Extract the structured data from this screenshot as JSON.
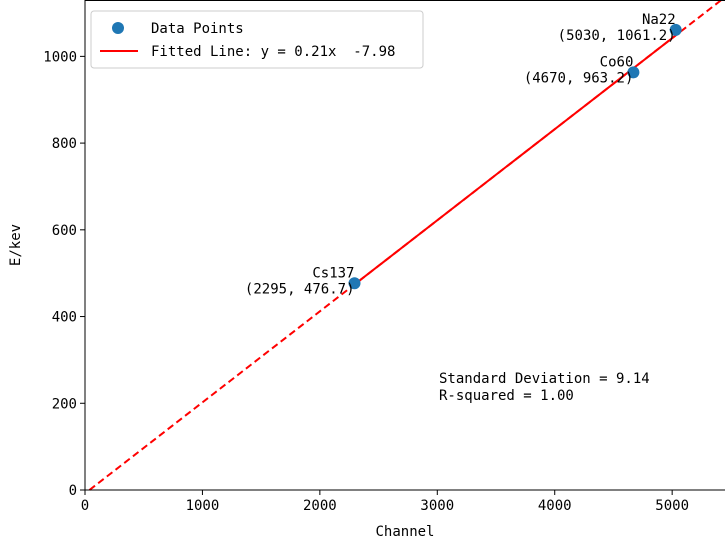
{
  "chart_data": {
    "type": "scatter",
    "xlabel": "Channel",
    "ylabel": "E/kev",
    "xlim": [
      0,
      5450
    ],
    "ylim": [
      0,
      1130
    ],
    "x_ticks": [
      0,
      1000,
      2000,
      3000,
      4000,
      5000
    ],
    "y_ticks": [
      0,
      200,
      400,
      600,
      800,
      1000
    ],
    "grid": false,
    "legend_position": "top-left",
    "series": [
      {
        "name": "Data Points",
        "type": "scatter",
        "color": "#1f77b4",
        "points": [
          {
            "x": 2295,
            "y": 476.7,
            "label": "Cs137",
            "coord_label": "(2295, 476.7)"
          },
          {
            "x": 4670,
            "y": 963.2,
            "label": "Co60",
            "coord_label": "(4670, 963.2)"
          },
          {
            "x": 5030,
            "y": 1061.2,
            "label": "Na22",
            "coord_label": "(5030, 1061.2)"
          }
        ]
      },
      {
        "name": "Fitted Line: y = 0.21x  -7.98",
        "type": "line",
        "color": "#ff0000",
        "slope": 0.21,
        "intercept": -7.98,
        "solid_range": [
          2295,
          5030
        ],
        "dashed_range": [
          0,
          5450
        ]
      }
    ],
    "annotations": {
      "std_dev": "Standard Deviation = 9.14",
      "r_squared": "R-squared = 1.00"
    }
  }
}
